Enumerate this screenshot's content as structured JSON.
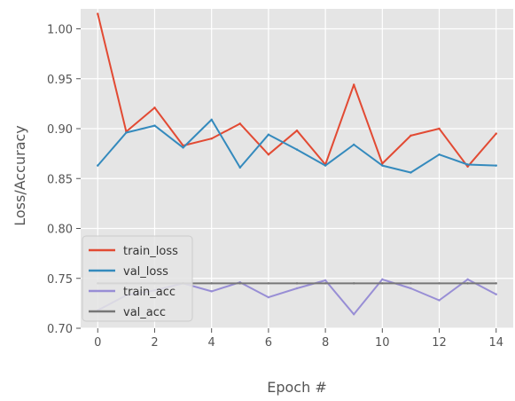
{
  "chart_data": {
    "type": "line",
    "xlabel": "Epoch #",
    "ylabel": "Loss/Accuracy",
    "xlim": [
      -0.6,
      14.6
    ],
    "ylim": [
      0.7,
      1.02
    ],
    "xticks": [
      "0",
      "2",
      "4",
      "6",
      "8",
      "10",
      "12",
      "14"
    ],
    "yticks": [
      "0.70",
      "0.75",
      "0.80",
      "0.85",
      "0.90",
      "0.95",
      "1.00"
    ],
    "grid": true,
    "legend_position": "lower-left",
    "x": [
      0,
      1,
      2,
      3,
      4,
      5,
      6,
      7,
      8,
      9,
      10,
      11,
      12,
      13,
      14
    ],
    "series": [
      {
        "name": "train_loss",
        "color": "#E24A33",
        "values": [
          1.015,
          0.897,
          0.921,
          0.883,
          0.89,
          0.905,
          0.874,
          0.898,
          0.864,
          0.944,
          0.865,
          0.893,
          0.9,
          0.862,
          0.895
        ]
      },
      {
        "name": "val_loss",
        "color": "#348ABD",
        "values": [
          0.863,
          0.896,
          0.903,
          0.881,
          0.909,
          0.861,
          0.894,
          0.879,
          0.863,
          0.884,
          0.863,
          0.856,
          0.874,
          0.864,
          0.863
        ]
      },
      {
        "name": "train_acc",
        "color": "#988ED5",
        "values": [
          0.718,
          0.733,
          0.738,
          0.745,
          0.737,
          0.746,
          0.731,
          0.74,
          0.748,
          0.714,
          0.749,
          0.74,
          0.728,
          0.749,
          0.734
        ]
      },
      {
        "name": "val_acc",
        "color": "#777777",
        "values": [
          0.745,
          0.745,
          0.745,
          0.745,
          0.745,
          0.745,
          0.745,
          0.745,
          0.745,
          0.745,
          0.745,
          0.745,
          0.745,
          0.745,
          0.745
        ]
      }
    ]
  }
}
